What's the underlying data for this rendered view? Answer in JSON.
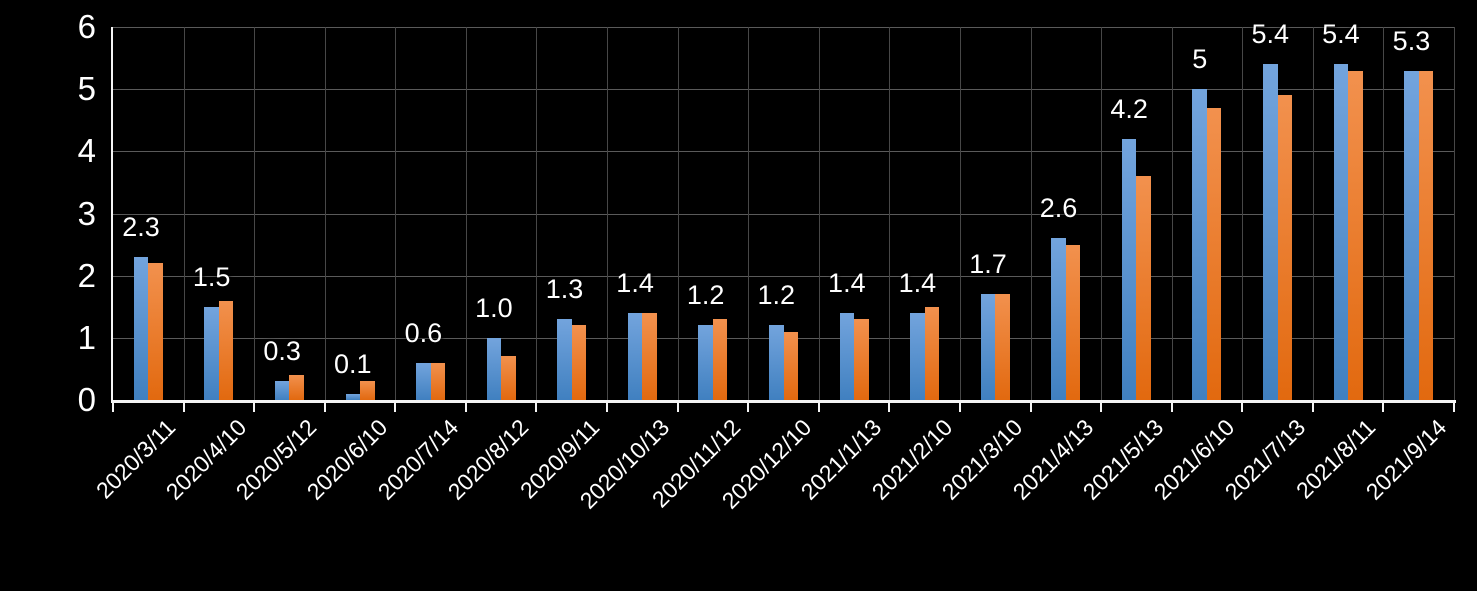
{
  "chart_data": {
    "type": "bar",
    "title": "",
    "xlabel": "",
    "ylabel": "",
    "categories": [
      "2020/3/11",
      "2020/4/10",
      "2020/5/12",
      "2020/6/10",
      "2020/7/14",
      "2020/8/12",
      "2020/9/11",
      "2020/10/13",
      "2020/11/12",
      "2020/12/10",
      "2021/1/13",
      "2021/2/10",
      "2021/3/10",
      "2021/4/13",
      "2021/5/13",
      "2021/6/10",
      "2021/7/13",
      "2021/8/11",
      "2021/9/14"
    ],
    "series": [
      {
        "name": "blue",
        "color_top": "#73A4DD",
        "color_bottom": "#4080C0",
        "values": [
          2.3,
          1.5,
          0.3,
          0.1,
          0.6,
          1.0,
          1.3,
          1.4,
          1.2,
          1.2,
          1.4,
          1.4,
          1.7,
          2.6,
          4.2,
          5.0,
          5.4,
          5.4,
          5.3
        ],
        "data_labels": [
          "2.3",
          "1.5",
          "0.3",
          "0.1",
          "0.6",
          "1.0",
          "1.3",
          "1.4",
          "1.2",
          "1.2",
          "1.4",
          "1.4",
          "1.7",
          "2.6",
          "4.2",
          "5",
          "5.4",
          "5.4",
          "5.3"
        ]
      },
      {
        "name": "orange",
        "color_top": "#F2914E",
        "color_bottom": "#E2690F",
        "values": [
          2.2,
          1.6,
          0.4,
          0.3,
          0.6,
          0.7,
          1.2,
          1.4,
          1.3,
          1.1,
          1.3,
          1.5,
          1.7,
          2.5,
          3.6,
          4.7,
          4.9,
          5.3,
          5.3
        ],
        "data_labels": []
      }
    ],
    "ylim": [
      0,
      6
    ],
    "yticks": [
      "0",
      "1",
      "2",
      "3",
      "4",
      "5",
      "6"
    ],
    "grid": true,
    "legend_position": "none",
    "background_color": "#000000",
    "axis_color": "#f5f5f5",
    "hgrid_color": "#5a5a5a",
    "vgrid_color": "#474747",
    "text_color": "#ffffff"
  }
}
